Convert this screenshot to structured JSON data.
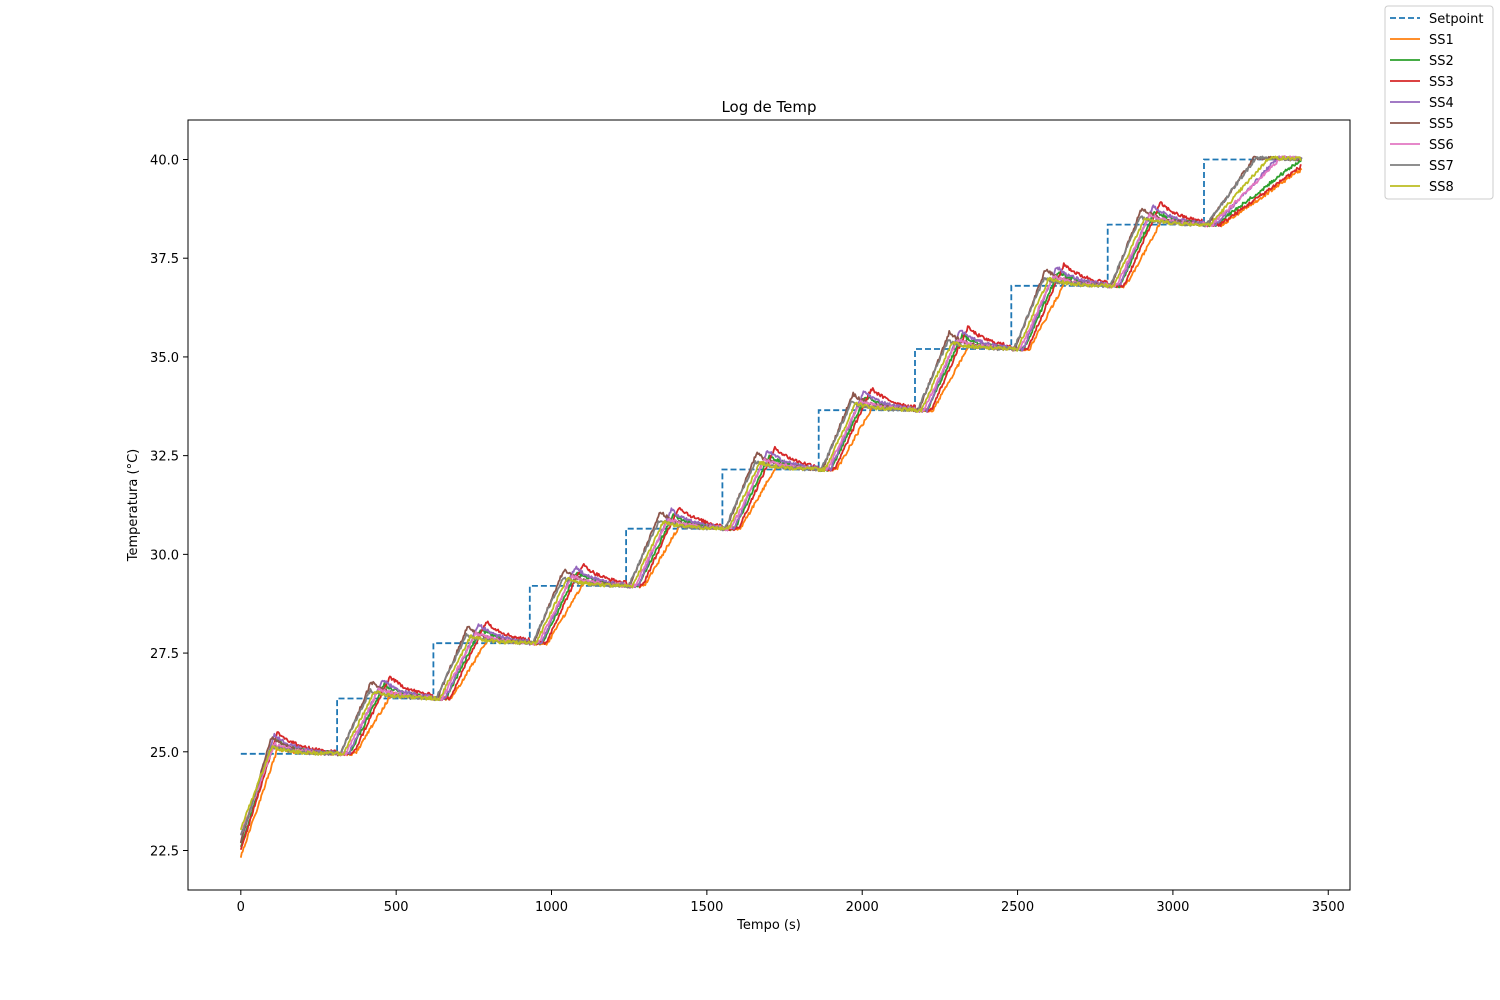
{
  "chart_data": {
    "type": "line",
    "title": "Log de Temp",
    "xlabel": "Tempo (s)",
    "ylabel": "Temperatura (°C)",
    "xlim": [
      -170,
      3570
    ],
    "ylim": [
      21.5,
      41.0
    ],
    "xticks": [
      0,
      500,
      1000,
      1500,
      2000,
      2500,
      3000,
      3500
    ],
    "yticks": [
      22.5,
      25.0,
      27.5,
      30.0,
      32.5,
      35.0,
      37.5,
      40.0
    ],
    "xtick_labels": [
      "0",
      "500",
      "1000",
      "1500",
      "2000",
      "2500",
      "3000",
      "3500"
    ],
    "ytick_labels": [
      "22.5",
      "25.0",
      "27.5",
      "30.0",
      "32.5",
      "35.0",
      "37.5",
      "40.0"
    ],
    "grid": false,
    "legend_position": "top-right (outside)",
    "step_times": [
      0,
      310,
      620,
      930,
      1240,
      1550,
      1860,
      2170,
      2480,
      2790,
      3100,
      3410
    ],
    "setpoint_levels": [
      24.95,
      26.35,
      27.75,
      29.2,
      30.65,
      32.15,
      33.65,
      35.2,
      36.8,
      38.35,
      40.0
    ],
    "series": [
      {
        "name": "Setpoint",
        "color": "#1f77b4",
        "dashed": true,
        "x": [
          0,
          310,
          310,
          620,
          620,
          930,
          930,
          1240,
          1240,
          1550,
          1550,
          1860,
          1860,
          2170,
          2170,
          2480,
          2480,
          2790,
          2790,
          3100,
          3100,
          3410
        ],
        "y": [
          24.95,
          24.95,
          26.35,
          26.35,
          27.75,
          27.75,
          29.2,
          29.2,
          30.65,
          30.65,
          32.15,
          32.15,
          33.65,
          33.65,
          35.2,
          35.2,
          36.8,
          36.8,
          38.35,
          38.35,
          40.0,
          40.0
        ]
      },
      {
        "name": "SS1",
        "color": "#ff7f0e",
        "start": 22.35,
        "lag": 58,
        "rise": 118,
        "over": 0.12,
        "final_lag": 310
      },
      {
        "name": "SS2",
        "color": "#2ca02c",
        "start": 22.6,
        "lag": 40,
        "rise": 112,
        "over": 0.35,
        "final_lag": 280
      },
      {
        "name": "SS3",
        "color": "#d62728",
        "start": 22.5,
        "lag": 52,
        "rise": 118,
        "over": 0.55,
        "final_lag": 300
      },
      {
        "name": "SS4",
        "color": "#9467bd",
        "start": 22.75,
        "lag": 38,
        "rise": 108,
        "over": 0.48,
        "final_lag": 200
      },
      {
        "name": "SS5",
        "color": "#8c564b",
        "start": 22.7,
        "lag": 12,
        "rise": 98,
        "over": 0.42,
        "final_lag": 150
      },
      {
        "name": "SS6",
        "color": "#e377c2",
        "start": 22.9,
        "lag": 28,
        "rise": 108,
        "over": 0.25,
        "final_lag": 220
      },
      {
        "name": "SS7",
        "color": "#7f7f7f",
        "start": 22.85,
        "lag": 8,
        "rise": 98,
        "over": 0.2,
        "final_lag": 160
      },
      {
        "name": "SS8",
        "color": "#bcbd22",
        "start": 23.05,
        "lag": 20,
        "rise": 100,
        "over": 0.18,
        "final_lag": 190
      }
    ]
  }
}
